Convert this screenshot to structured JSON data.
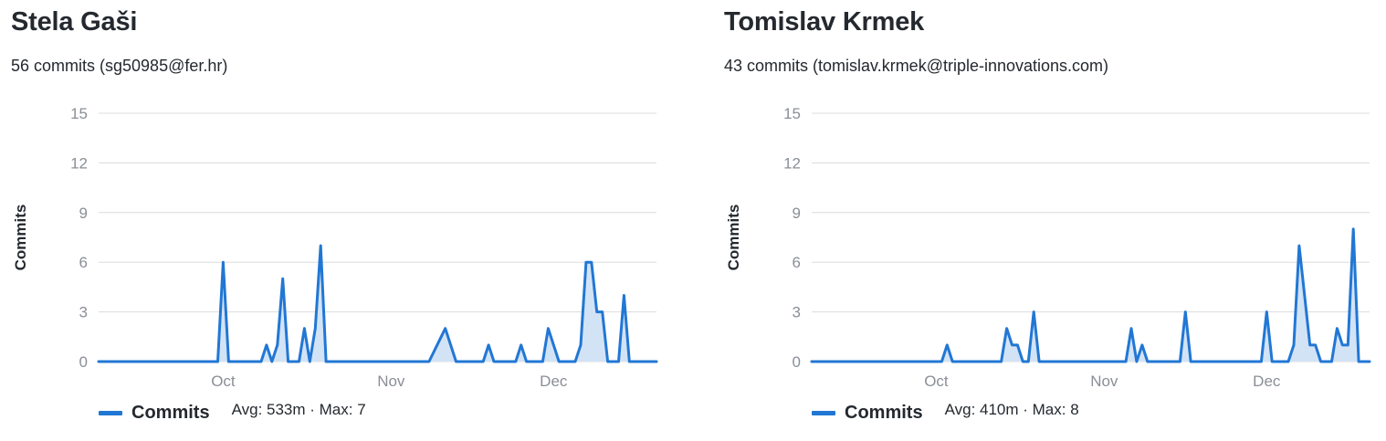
{
  "colors": {
    "line": "#2177d4",
    "fill": "#d3e3f6",
    "grid": "#dcdcdc",
    "tick": "#8a8f96"
  },
  "contributors": [
    {
      "name": "Stela Gaši",
      "subtitle": "56 commits (sg50985@fer.hr)",
      "legend_label": "Commits",
      "legend_stats": "Avg: 533m · Max: 7"
    },
    {
      "name": "Tomislav Krmek",
      "subtitle": "43 commits (tomislav.krmek@triple-innovations.com)",
      "legend_label": "Commits",
      "legend_stats": "Avg: 410m · Max: 8"
    }
  ],
  "chart_data": [
    {
      "type": "area",
      "ylabel": "Commits",
      "ylim": [
        0,
        15
      ],
      "yticks": [
        0,
        3,
        6,
        9,
        12,
        15
      ],
      "grid": true,
      "legend_position": "bottom-left",
      "x_domain": [
        "2024-09-08",
        "2024-12-20"
      ],
      "xticks": [
        {
          "date": "2024-10-01",
          "label": "Oct"
        },
        {
          "date": "2024-11-01",
          "label": "Nov"
        },
        {
          "date": "2024-12-01",
          "label": "Dec"
        }
      ],
      "series": [
        {
          "name": "Commits",
          "points": [
            [
              "2024-09-08",
              0
            ],
            [
              "2024-09-30",
              0
            ],
            [
              "2024-10-01",
              6
            ],
            [
              "2024-10-02",
              0
            ],
            [
              "2024-10-08",
              0
            ],
            [
              "2024-10-09",
              1
            ],
            [
              "2024-10-10",
              0
            ],
            [
              "2024-10-11",
              1
            ],
            [
              "2024-10-12",
              5
            ],
            [
              "2024-10-13",
              0
            ],
            [
              "2024-10-15",
              0
            ],
            [
              "2024-10-16",
              2
            ],
            [
              "2024-10-17",
              0
            ],
            [
              "2024-10-18",
              2
            ],
            [
              "2024-10-19",
              7
            ],
            [
              "2024-10-20",
              0
            ],
            [
              "2024-11-08",
              0
            ],
            [
              "2024-11-11",
              2
            ],
            [
              "2024-11-13",
              0
            ],
            [
              "2024-11-18",
              0
            ],
            [
              "2024-11-19",
              1
            ],
            [
              "2024-11-20",
              0
            ],
            [
              "2024-11-24",
              0
            ],
            [
              "2024-11-25",
              1
            ],
            [
              "2024-11-26",
              0
            ],
            [
              "2024-11-29",
              0
            ],
            [
              "2024-11-30",
              2
            ],
            [
              "2024-12-02",
              0
            ],
            [
              "2024-12-05",
              0
            ],
            [
              "2024-12-06",
              1
            ],
            [
              "2024-12-07",
              6
            ],
            [
              "2024-12-08",
              6
            ],
            [
              "2024-12-09",
              3
            ],
            [
              "2024-12-10",
              3
            ],
            [
              "2024-12-11",
              0
            ],
            [
              "2024-12-13",
              0
            ],
            [
              "2024-12-14",
              4
            ],
            [
              "2024-12-15",
              0
            ],
            [
              "2024-12-20",
              0
            ]
          ]
        }
      ]
    },
    {
      "type": "area",
      "ylabel": "Commits",
      "ylim": [
        0,
        15
      ],
      "yticks": [
        0,
        3,
        6,
        9,
        12,
        15
      ],
      "grid": true,
      "legend_position": "bottom-left",
      "x_domain": [
        "2024-09-08",
        "2024-12-20"
      ],
      "xticks": [
        {
          "date": "2024-10-01",
          "label": "Oct"
        },
        {
          "date": "2024-11-01",
          "label": "Nov"
        },
        {
          "date": "2024-12-01",
          "label": "Dec"
        }
      ],
      "series": [
        {
          "name": "Commits",
          "points": [
            [
              "2024-09-08",
              0
            ],
            [
              "2024-10-02",
              0
            ],
            [
              "2024-10-03",
              1
            ],
            [
              "2024-10-04",
              0
            ],
            [
              "2024-10-13",
              0
            ],
            [
              "2024-10-14",
              2
            ],
            [
              "2024-10-15",
              1
            ],
            [
              "2024-10-16",
              1
            ],
            [
              "2024-10-17",
              0
            ],
            [
              "2024-10-18",
              0
            ],
            [
              "2024-10-19",
              3
            ],
            [
              "2024-10-20",
              0
            ],
            [
              "2024-11-05",
              0
            ],
            [
              "2024-11-06",
              2
            ],
            [
              "2024-11-07",
              0
            ],
            [
              "2024-11-08",
              1
            ],
            [
              "2024-11-09",
              0
            ],
            [
              "2024-11-15",
              0
            ],
            [
              "2024-11-16",
              3
            ],
            [
              "2024-11-17",
              0
            ],
            [
              "2024-11-30",
              0
            ],
            [
              "2024-12-01",
              3
            ],
            [
              "2024-12-02",
              0
            ],
            [
              "2024-12-05",
              0
            ],
            [
              "2024-12-06",
              1
            ],
            [
              "2024-12-07",
              7
            ],
            [
              "2024-12-09",
              1
            ],
            [
              "2024-12-10",
              1
            ],
            [
              "2024-12-11",
              0
            ],
            [
              "2024-12-13",
              0
            ],
            [
              "2024-12-14",
              2
            ],
            [
              "2024-12-15",
              1
            ],
            [
              "2024-12-16",
              1
            ],
            [
              "2024-12-17",
              8
            ],
            [
              "2024-12-18",
              0
            ],
            [
              "2024-12-20",
              0
            ]
          ]
        }
      ]
    }
  ]
}
